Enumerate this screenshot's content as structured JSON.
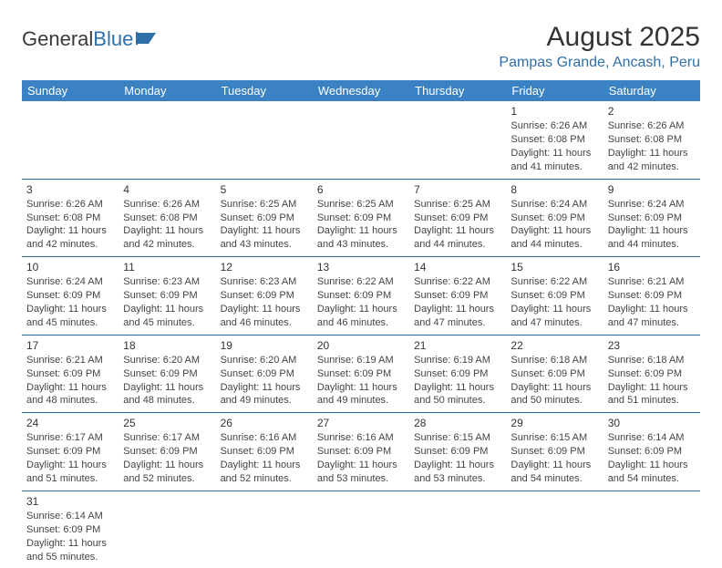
{
  "logo": {
    "text1": "General",
    "text2": "Blue"
  },
  "title": "August 2025",
  "location": "Pampas Grande, Ancash, Peru",
  "colors": {
    "header_bg": "#3a82c4",
    "header_text": "#ffffff",
    "accent": "#2f6fa8",
    "body_text": "#444444"
  },
  "day_headers": [
    "Sunday",
    "Monday",
    "Tuesday",
    "Wednesday",
    "Thursday",
    "Friday",
    "Saturday"
  ],
  "weeks": [
    [
      null,
      null,
      null,
      null,
      null,
      {
        "n": "1",
        "sr": "Sunrise: 6:26 AM",
        "ss": "Sunset: 6:08 PM",
        "d1": "Daylight: 11 hours",
        "d2": "and 41 minutes."
      },
      {
        "n": "2",
        "sr": "Sunrise: 6:26 AM",
        "ss": "Sunset: 6:08 PM",
        "d1": "Daylight: 11 hours",
        "d2": "and 42 minutes."
      }
    ],
    [
      {
        "n": "3",
        "sr": "Sunrise: 6:26 AM",
        "ss": "Sunset: 6:08 PM",
        "d1": "Daylight: 11 hours",
        "d2": "and 42 minutes."
      },
      {
        "n": "4",
        "sr": "Sunrise: 6:26 AM",
        "ss": "Sunset: 6:08 PM",
        "d1": "Daylight: 11 hours",
        "d2": "and 42 minutes."
      },
      {
        "n": "5",
        "sr": "Sunrise: 6:25 AM",
        "ss": "Sunset: 6:09 PM",
        "d1": "Daylight: 11 hours",
        "d2": "and 43 minutes."
      },
      {
        "n": "6",
        "sr": "Sunrise: 6:25 AM",
        "ss": "Sunset: 6:09 PM",
        "d1": "Daylight: 11 hours",
        "d2": "and 43 minutes."
      },
      {
        "n": "7",
        "sr": "Sunrise: 6:25 AM",
        "ss": "Sunset: 6:09 PM",
        "d1": "Daylight: 11 hours",
        "d2": "and 44 minutes."
      },
      {
        "n": "8",
        "sr": "Sunrise: 6:24 AM",
        "ss": "Sunset: 6:09 PM",
        "d1": "Daylight: 11 hours",
        "d2": "and 44 minutes."
      },
      {
        "n": "9",
        "sr": "Sunrise: 6:24 AM",
        "ss": "Sunset: 6:09 PM",
        "d1": "Daylight: 11 hours",
        "d2": "and 44 minutes."
      }
    ],
    [
      {
        "n": "10",
        "sr": "Sunrise: 6:24 AM",
        "ss": "Sunset: 6:09 PM",
        "d1": "Daylight: 11 hours",
        "d2": "and 45 minutes."
      },
      {
        "n": "11",
        "sr": "Sunrise: 6:23 AM",
        "ss": "Sunset: 6:09 PM",
        "d1": "Daylight: 11 hours",
        "d2": "and 45 minutes."
      },
      {
        "n": "12",
        "sr": "Sunrise: 6:23 AM",
        "ss": "Sunset: 6:09 PM",
        "d1": "Daylight: 11 hours",
        "d2": "and 46 minutes."
      },
      {
        "n": "13",
        "sr": "Sunrise: 6:22 AM",
        "ss": "Sunset: 6:09 PM",
        "d1": "Daylight: 11 hours",
        "d2": "and 46 minutes."
      },
      {
        "n": "14",
        "sr": "Sunrise: 6:22 AM",
        "ss": "Sunset: 6:09 PM",
        "d1": "Daylight: 11 hours",
        "d2": "and 47 minutes."
      },
      {
        "n": "15",
        "sr": "Sunrise: 6:22 AM",
        "ss": "Sunset: 6:09 PM",
        "d1": "Daylight: 11 hours",
        "d2": "and 47 minutes."
      },
      {
        "n": "16",
        "sr": "Sunrise: 6:21 AM",
        "ss": "Sunset: 6:09 PM",
        "d1": "Daylight: 11 hours",
        "d2": "and 47 minutes."
      }
    ],
    [
      {
        "n": "17",
        "sr": "Sunrise: 6:21 AM",
        "ss": "Sunset: 6:09 PM",
        "d1": "Daylight: 11 hours",
        "d2": "and 48 minutes."
      },
      {
        "n": "18",
        "sr": "Sunrise: 6:20 AM",
        "ss": "Sunset: 6:09 PM",
        "d1": "Daylight: 11 hours",
        "d2": "and 48 minutes."
      },
      {
        "n": "19",
        "sr": "Sunrise: 6:20 AM",
        "ss": "Sunset: 6:09 PM",
        "d1": "Daylight: 11 hours",
        "d2": "and 49 minutes."
      },
      {
        "n": "20",
        "sr": "Sunrise: 6:19 AM",
        "ss": "Sunset: 6:09 PM",
        "d1": "Daylight: 11 hours",
        "d2": "and 49 minutes."
      },
      {
        "n": "21",
        "sr": "Sunrise: 6:19 AM",
        "ss": "Sunset: 6:09 PM",
        "d1": "Daylight: 11 hours",
        "d2": "and 50 minutes."
      },
      {
        "n": "22",
        "sr": "Sunrise: 6:18 AM",
        "ss": "Sunset: 6:09 PM",
        "d1": "Daylight: 11 hours",
        "d2": "and 50 minutes."
      },
      {
        "n": "23",
        "sr": "Sunrise: 6:18 AM",
        "ss": "Sunset: 6:09 PM",
        "d1": "Daylight: 11 hours",
        "d2": "and 51 minutes."
      }
    ],
    [
      {
        "n": "24",
        "sr": "Sunrise: 6:17 AM",
        "ss": "Sunset: 6:09 PM",
        "d1": "Daylight: 11 hours",
        "d2": "and 51 minutes."
      },
      {
        "n": "25",
        "sr": "Sunrise: 6:17 AM",
        "ss": "Sunset: 6:09 PM",
        "d1": "Daylight: 11 hours",
        "d2": "and 52 minutes."
      },
      {
        "n": "26",
        "sr": "Sunrise: 6:16 AM",
        "ss": "Sunset: 6:09 PM",
        "d1": "Daylight: 11 hours",
        "d2": "and 52 minutes."
      },
      {
        "n": "27",
        "sr": "Sunrise: 6:16 AM",
        "ss": "Sunset: 6:09 PM",
        "d1": "Daylight: 11 hours",
        "d2": "and 53 minutes."
      },
      {
        "n": "28",
        "sr": "Sunrise: 6:15 AM",
        "ss": "Sunset: 6:09 PM",
        "d1": "Daylight: 11 hours",
        "d2": "and 53 minutes."
      },
      {
        "n": "29",
        "sr": "Sunrise: 6:15 AM",
        "ss": "Sunset: 6:09 PM",
        "d1": "Daylight: 11 hours",
        "d2": "and 54 minutes."
      },
      {
        "n": "30",
        "sr": "Sunrise: 6:14 AM",
        "ss": "Sunset: 6:09 PM",
        "d1": "Daylight: 11 hours",
        "d2": "and 54 minutes."
      }
    ],
    [
      {
        "n": "31",
        "sr": "Sunrise: 6:14 AM",
        "ss": "Sunset: 6:09 PM",
        "d1": "Daylight: 11 hours",
        "d2": "and 55 minutes."
      },
      null,
      null,
      null,
      null,
      null,
      null
    ]
  ]
}
